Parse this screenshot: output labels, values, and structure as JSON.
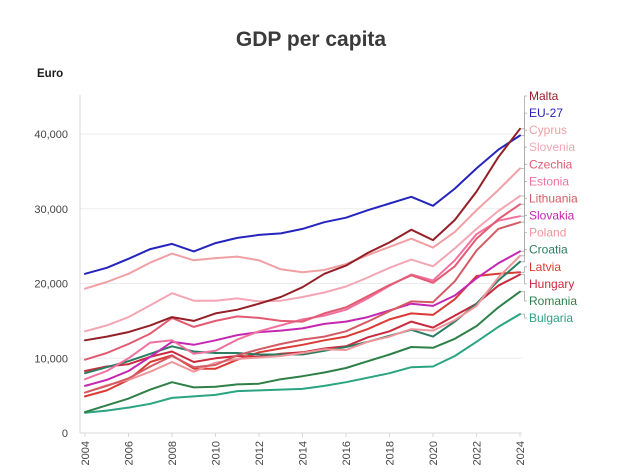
{
  "header": {
    "title": "GDP per capita",
    "unit_label": "Euro"
  },
  "chart_data": {
    "type": "line",
    "title": "GDP per capita",
    "ylabel": "Euro",
    "xlabel": "",
    "grid": "horizontal",
    "legend_position": "right",
    "ylim": [
      0,
      43000
    ],
    "yticks": [
      0,
      10000,
      20000,
      30000,
      40000
    ],
    "ytick_labels": [
      "0",
      "10,000",
      "20,000",
      "30,000",
      "40,000"
    ],
    "xticks": [
      2004,
      2006,
      2008,
      2010,
      2012,
      2014,
      2016,
      2018,
      2020,
      2022,
      2024
    ],
    "x": [
      2004,
      2005,
      2006,
      2007,
      2008,
      2009,
      2010,
      2011,
      2012,
      2013,
      2014,
      2015,
      2016,
      2017,
      2018,
      2019,
      2020,
      2021,
      2022,
      2023,
      2024
    ],
    "series": [
      {
        "name": "Malta",
        "color": "#941f27",
        "values": [
          12400,
          12900,
          13500,
          14400,
          15500,
          15000,
          16000,
          16500,
          17300,
          18200,
          19500,
          21300,
          22400,
          24100,
          25500,
          27200,
          25800,
          28500,
          32300,
          36900,
          40700
        ]
      },
      {
        "name": "EU-27",
        "color": "#2525bd",
        "values": [
          21300,
          22100,
          23300,
          24600,
          25300,
          24300,
          25400,
          26100,
          26500,
          26700,
          27300,
          28200,
          28800,
          29800,
          30700,
          31600,
          30400,
          32700,
          35400,
          37900,
          39800
        ]
      },
      {
        "name": "Cyprus",
        "color": "#f0a0a3",
        "values": [
          19300,
          20200,
          21300,
          22800,
          24000,
          23100,
          23400,
          23600,
          23100,
          21900,
          21500,
          21800,
          22600,
          23800,
          24900,
          26000,
          24800,
          26900,
          29800,
          32500,
          35400
        ]
      },
      {
        "name": "Slovenia",
        "color": "#f3a6b4",
        "values": [
          13600,
          14400,
          15500,
          17100,
          18700,
          17700,
          17700,
          18000,
          17600,
          17700,
          18200,
          18800,
          19600,
          20800,
          22100,
          23200,
          22300,
          24700,
          27300,
          29700,
          31700
        ]
      },
      {
        "name": "Czechia",
        "color": "#e25b72",
        "values": [
          9800,
          10700,
          11900,
          13300,
          15400,
          14200,
          15000,
          15600,
          15400,
          15000,
          14900,
          16000,
          16800,
          18300,
          19800,
          21100,
          20100,
          22300,
          26000,
          28600,
          30600
        ]
      },
      {
        "name": "Estonia",
        "color": "#f0719f",
        "values": [
          7200,
          8300,
          10000,
          12100,
          12400,
          10600,
          11000,
          12500,
          13600,
          14400,
          15200,
          15700,
          16500,
          18000,
          19700,
          21200,
          20400,
          23100,
          26600,
          28400,
          29000
        ]
      },
      {
        "name": "Lithuania",
        "color": "#d45a64",
        "values": [
          5400,
          6300,
          7300,
          8900,
          10300,
          8800,
          9100,
          10400,
          11200,
          11900,
          12500,
          12900,
          13600,
          14900,
          16300,
          17600,
          17500,
          20300,
          24400,
          27300,
          28200
        ]
      },
      {
        "name": "Slovakia",
        "color": "#c428b2",
        "values": [
          6300,
          7100,
          8300,
          10200,
          12200,
          11800,
          12400,
          13100,
          13500,
          13700,
          14000,
          14600,
          14900,
          15500,
          16400,
          17300,
          17000,
          18400,
          20700,
          22700,
          24300
        ]
      },
      {
        "name": "Poland",
        "color": "#f0959c",
        "values": [
          5400,
          6400,
          7100,
          8200,
          9500,
          8200,
          9400,
          9900,
          10100,
          10300,
          10700,
          11200,
          11100,
          12200,
          12900,
          13900,
          13700,
          15100,
          17000,
          20800,
          23700
        ]
      },
      {
        "name": "Croatia",
        "color": "#2a7d60",
        "values": [
          8000,
          8800,
          9600,
          10600,
          11600,
          10900,
          10700,
          10700,
          10500,
          10500,
          10500,
          11000,
          11500,
          12200,
          13000,
          13800,
          12900,
          14900,
          17300,
          20400,
          22900
        ]
      },
      {
        "name": "Latvia",
        "color": "#da3b35",
        "values": [
          4900,
          5700,
          7100,
          9500,
          10400,
          8600,
          8600,
          9800,
          10800,
          11300,
          11800,
          12400,
          12900,
          13900,
          15200,
          16000,
          15800,
          17900,
          21000,
          21300,
          21500
        ]
      },
      {
        "name": "Hungary",
        "color": "#c92a3d",
        "values": [
          8300,
          8900,
          9200,
          10200,
          10900,
          9500,
          10000,
          10300,
          10200,
          10600,
          10800,
          11300,
          11600,
          12800,
          13600,
          14900,
          14100,
          15700,
          17300,
          19700,
          21200
        ]
      },
      {
        "name": "Romania",
        "color": "#2e8048",
        "values": [
          2800,
          3700,
          4600,
          5800,
          6800,
          6100,
          6200,
          6500,
          6600,
          7200,
          7600,
          8100,
          8700,
          9600,
          10500,
          11500,
          11400,
          12600,
          14300,
          16800,
          18900
        ]
      },
      {
        "name": "Bulgaria",
        "color": "#2aa482",
        "values": [
          2700,
          3000,
          3400,
          3900,
          4700,
          4900,
          5100,
          5600,
          5700,
          5800,
          5900,
          6300,
          6800,
          7400,
          8000,
          8800,
          8900,
          10300,
          12200,
          14200,
          15900
        ]
      }
    ]
  },
  "style_colors": {
    "title_text": "#3a3a3a",
    "tick_text": "#444444",
    "axis_line": "#d9d9d9",
    "grid_line": "#ebebeb",
    "leader_line": "#a8a8a8",
    "background": "#ffffff"
  }
}
